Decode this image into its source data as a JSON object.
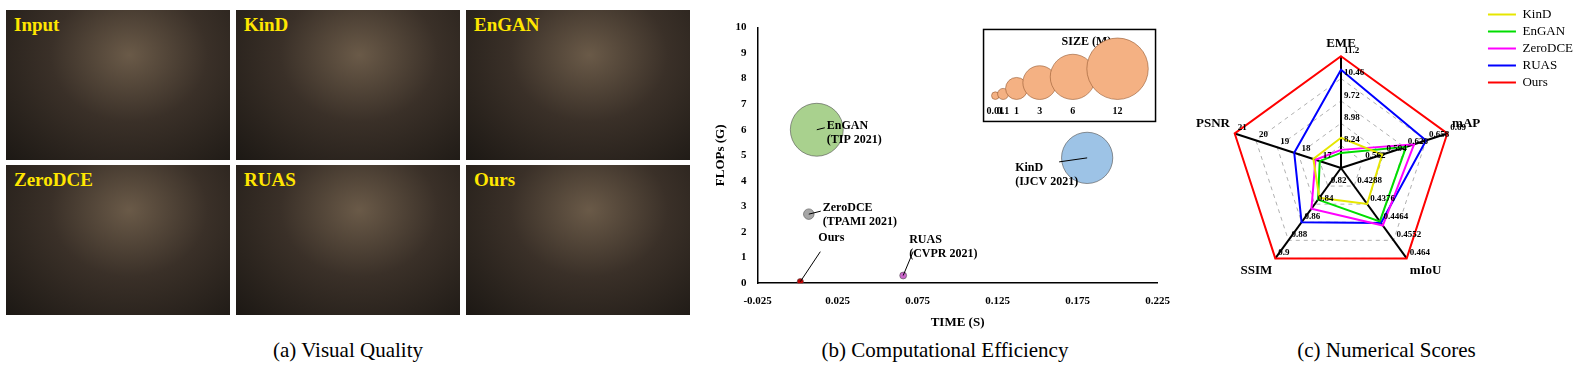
{
  "image_grid": {
    "title": "(a) Visual Quality",
    "labels": [
      "Input",
      "KinD",
      "EnGAN",
      "ZeroDCE",
      "RUAS",
      "Ours"
    ]
  },
  "chart_data": [
    {
      "type": "bubble",
      "title": "(b) Computational Efficiency",
      "x_label": "TIME (S)",
      "y_label": "FLOPs (G)",
      "xlim": [
        -0.025,
        0.225
      ],
      "xticks": [
        -0.025,
        0.025,
        0.075,
        0.125,
        0.175,
        0.225
      ],
      "ylim": [
        0,
        10
      ],
      "yticks": [
        0,
        1,
        2,
        3,
        4,
        5,
        6,
        7,
        8,
        9,
        10
      ],
      "grid": false,
      "series": [
        {
          "name": "EnGAN",
          "annotation": "(TIP 2021)",
          "color": "#a9d18e",
          "x": [
            0.012
          ],
          "values": [
            6.0
          ],
          "size": [
            8.6
          ]
        },
        {
          "name": "KinD",
          "annotation": "(IJCV 2021)",
          "color": "#9dc3e6",
          "x": [
            0.181
          ],
          "values": [
            4.9
          ],
          "size": [
            8.0
          ]
        },
        {
          "name": "ZeroDCE",
          "annotation": "(TPAMI 2021)",
          "color": "#a6a6a6",
          "x": [
            0.007
          ],
          "values": [
            2.7
          ],
          "size": [
            0.08
          ]
        },
        {
          "name": "RUAS",
          "annotation": "(CVPR 2021)",
          "color": "#cc66cc",
          "x": [
            0.066
          ],
          "values": [
            0.3
          ],
          "size": [
            0.003
          ]
        },
        {
          "name": "Ours",
          "color": "#c00000",
          "x": [
            0.0017
          ],
          "values": [
            0.06
          ],
          "size": [
            0.0003
          ]
        }
      ],
      "size_legend": {
        "title": "SIZE (M)",
        "color": "#f4b183",
        "values": [
          0.01,
          0.1,
          1,
          3,
          6,
          12
        ]
      }
    },
    {
      "type": "radar",
      "title": "(c) Numerical Scores",
      "legend": "top-right",
      "axes": [
        {
          "name": "EME",
          "lim": [
            7.5,
            11.2
          ],
          "ticks": [
            8.24,
            8.98,
            9.72,
            10.46,
            11.2
          ]
        },
        {
          "name": "mAP",
          "lim": [
            0.53,
            0.69
          ],
          "ticks": [
            0.562,
            0.594,
            0.626,
            0.658,
            0.69
          ]
        },
        {
          "name": "mIoU",
          "lim": [
            0.42,
            0.464
          ],
          "ticks": [
            0.4288,
            0.4376,
            0.4464,
            0.4552,
            0.464
          ]
        },
        {
          "name": "SSIM",
          "lim": [
            0.8,
            0.9
          ],
          "ticks": [
            0.82,
            0.84,
            0.86,
            0.88,
            0.9
          ]
        },
        {
          "name": "PSNR",
          "lim": [
            16,
            21
          ],
          "ticks": [
            17,
            18,
            19,
            20,
            21
          ]
        }
      ],
      "series": [
        {
          "name": "KinD",
          "color": "#e6e600",
          "values": [
            8.5,
            0.592,
            0.4375,
            0.833,
            17.3
          ]
        },
        {
          "name": "EnGAN",
          "color": "#00dd00",
          "values": [
            8.0,
            0.628,
            0.446,
            0.835,
            17.0
          ]
        },
        {
          "name": "ZeroDCE",
          "color": "#ff00ff",
          "values": [
            8.1,
            0.64,
            0.448,
            0.845,
            17.2
          ]
        },
        {
          "name": "RUAS",
          "color": "#0000ff",
          "values": [
            10.75,
            0.658,
            0.4468,
            0.86,
            18.2
          ]
        },
        {
          "name": "Ours",
          "color": "#ff0000",
          "values": [
            11.2,
            0.69,
            0.464,
            0.9,
            21
          ]
        }
      ]
    }
  ]
}
